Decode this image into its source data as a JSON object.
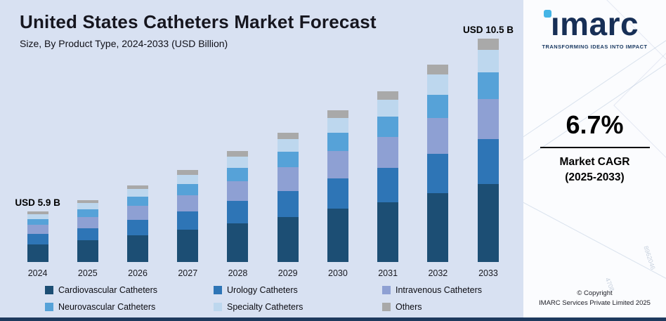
{
  "header": {
    "title": "United States Catheters Market Forecast",
    "subtitle": "Size, By Product Type, 2024-2033 (USD Billion)"
  },
  "sidebar": {
    "logo_text": "ımarc",
    "tagline": "TRANSFORMING IDEAS INTO IMPACT",
    "cagr_value": "6.7%",
    "cagr_label_line1": "Market CAGR",
    "cagr_label_line2": "(2025-2033)",
    "copyright_line1": "© Copyright",
    "copyright_line2": "IMARC Services Private Limited 2025",
    "watermark_numbers": {
      "a": "8962046",
      "b": "4708"
    }
  },
  "colors": {
    "chart_background": "#d8e1f2",
    "panel_background": "#fbfcfe",
    "bottom_bar": "#1e3a5e",
    "brand_navy": "#172f56",
    "brand_light_blue": "#45b5e6"
  },
  "chart_data": {
    "type": "bar",
    "stacked": true,
    "title": "United States Catheters Market Forecast",
    "subtitle": "Size, By Product Type, 2024-2033 (USD Billion)",
    "unit": "USD Billion",
    "legend_position": "bottom",
    "grid": false,
    "y_axis_visible": false,
    "categories": [
      "2024",
      "2025",
      "2026",
      "2027",
      "2028",
      "2029",
      "2030",
      "2031",
      "2032",
      "2033"
    ],
    "totals": [
      5.9,
      6.2,
      6.6,
      7.0,
      7.5,
      8.0,
      8.6,
      9.1,
      9.8,
      10.5
    ],
    "series": [
      {
        "name": "Cardiovascular Catheters",
        "color": "#1c4e74",
        "values": [
          2.07,
          2.17,
          2.31,
          2.45,
          2.63,
          2.8,
          3.01,
          3.19,
          3.43,
          3.68
        ]
      },
      {
        "name": "Urology Catheters",
        "color": "#2e75b6",
        "values": [
          1.18,
          1.24,
          1.32,
          1.4,
          1.5,
          1.6,
          1.72,
          1.82,
          1.96,
          2.1
        ]
      },
      {
        "name": "Intravenous Catheters",
        "color": "#8ea0d3",
        "values": [
          1.06,
          1.12,
          1.19,
          1.26,
          1.35,
          1.44,
          1.55,
          1.64,
          1.76,
          1.89
        ]
      },
      {
        "name": "Neurovascular Catheters",
        "color": "#56a2d8",
        "values": [
          0.71,
          0.74,
          0.79,
          0.84,
          0.9,
          0.96,
          1.03,
          1.09,
          1.18,
          1.26
        ]
      },
      {
        "name": "Specialty Catheters",
        "color": "#bdd7ee",
        "values": [
          0.59,
          0.62,
          0.66,
          0.7,
          0.75,
          0.8,
          0.86,
          0.91,
          0.98,
          1.05
        ]
      },
      {
        "name": "Others",
        "color": "#a9a9a9",
        "values": [
          0.3,
          0.31,
          0.33,
          0.35,
          0.38,
          0.4,
          0.43,
          0.46,
          0.49,
          0.53
        ]
      }
    ],
    "annotations": [
      {
        "index": 0,
        "text": "USD 5.9 B"
      },
      {
        "index": 9,
        "text": "USD 10.5 B"
      }
    ]
  }
}
